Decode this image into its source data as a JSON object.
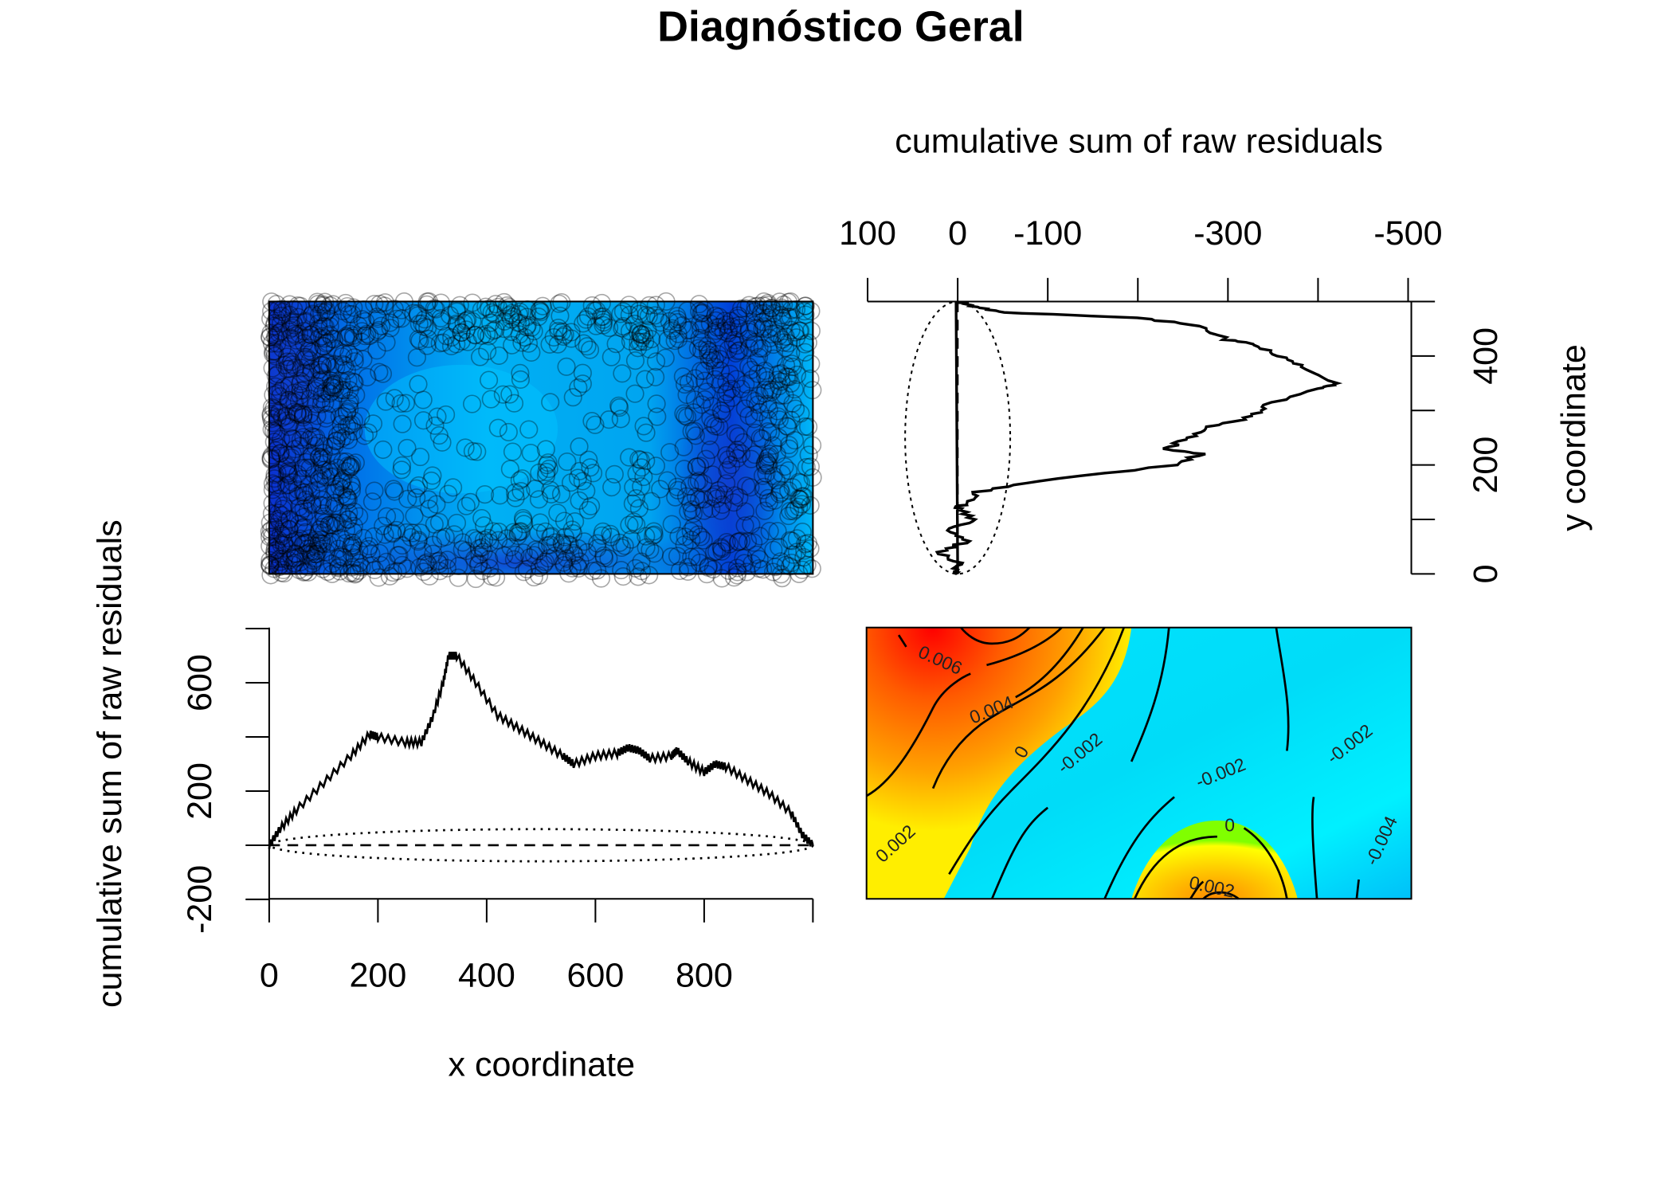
{
  "title": "Diagnóstico Geral",
  "chart_data": [
    {
      "type": "image",
      "name": "smoothed residual image with data points",
      "xlim": [
        0,
        1000
      ],
      "ylim": [
        0,
        500
      ],
      "colors": {
        "low": "#0a2fd8",
        "mid": "#00a8f0",
        "high": "#00c8ff"
      }
    },
    {
      "type": "line",
      "name": "lurking variable plot (y coordinate)",
      "title": "cumulative sum of raw residuals",
      "ylabel": "y coordinate",
      "x_ticks": [
        "100",
        "0",
        "-100",
        "-300",
        "-500"
      ],
      "x_tick_values": [
        100,
        0,
        -100,
        -200,
        -300,
        -400,
        -500
      ],
      "y_ticks": [
        "0",
        "200",
        "400"
      ],
      "y_tick_values": [
        0,
        100,
        200,
        300,
        400,
        500
      ],
      "xlim": [
        100,
        -500
      ],
      "ylim": [
        0,
        500
      ],
      "series": [
        {
          "name": "cumsum",
          "y": [
            0,
            5,
            20,
            40,
            60,
            80,
            100,
            120,
            130,
            150,
            170,
            200,
            220,
            230,
            250,
            270,
            290,
            310,
            340,
            350,
            380,
            400,
            420,
            430,
            455,
            470,
            480,
            490,
            500
          ],
          "r": [
            0,
            0,
            0,
            20,
            -10,
            10,
            -20,
            0,
            -10,
            -20,
            -90,
            -240,
            -270,
            -230,
            -260,
            -280,
            -330,
            -340,
            -400,
            -420,
            -380,
            -360,
            -330,
            -300,
            -270,
            -200,
            -50,
            -20,
            0
          ]
        }
      ],
      "envelope": {
        "type": "ellipse",
        "center": 0,
        "halfwidth": 58
      }
    },
    {
      "type": "line",
      "name": "lurking variable plot (x coordinate)",
      "xlabel": "x coordinate",
      "ylabel": "cumulative sum of raw residuals",
      "x_ticks": [
        "0",
        "200",
        "400",
        "600",
        "800"
      ],
      "x_tick_values": [
        0,
        200,
        400,
        600,
        800,
        1000
      ],
      "y_ticks": [
        "-200",
        "200",
        "600"
      ],
      "y_tick_values": [
        -200,
        0,
        200,
        400,
        600,
        800
      ],
      "xlim": [
        0,
        1000
      ],
      "ylim": [
        -200,
        800
      ],
      "series": [
        {
          "name": "cumsum",
          "x": [
            0,
            20,
            50,
            100,
            150,
            185,
            200,
            250,
            280,
            300,
            320,
            330,
            345,
            380,
            420,
            460,
            500,
            540,
            560,
            600,
            640,
            660,
            680,
            700,
            740,
            750,
            770,
            800,
            820,
            840,
            880,
            920,
            960,
            980,
            1000
          ],
          "y": [
            0,
            60,
            130,
            230,
            330,
            410,
            400,
            380,
            380,
            470,
            600,
            700,
            700,
            600,
            480,
            430,
            380,
            330,
            300,
            330,
            340,
            360,
            350,
            320,
            330,
            350,
            310,
            270,
            300,
            290,
            240,
            190,
            120,
            40,
            0
          ]
        }
      ],
      "envelope": {
        "type": "ellipse",
        "center": 0,
        "halfheight": 60
      }
    },
    {
      "type": "heatmap",
      "name": "smoothed residual contour map",
      "contour_labels": [
        "0.006",
        "0.004",
        "0",
        "-0.002",
        "0.002",
        "-0.002",
        "0",
        "-0.002",
        "0.002",
        "-0.004"
      ]
    }
  ]
}
